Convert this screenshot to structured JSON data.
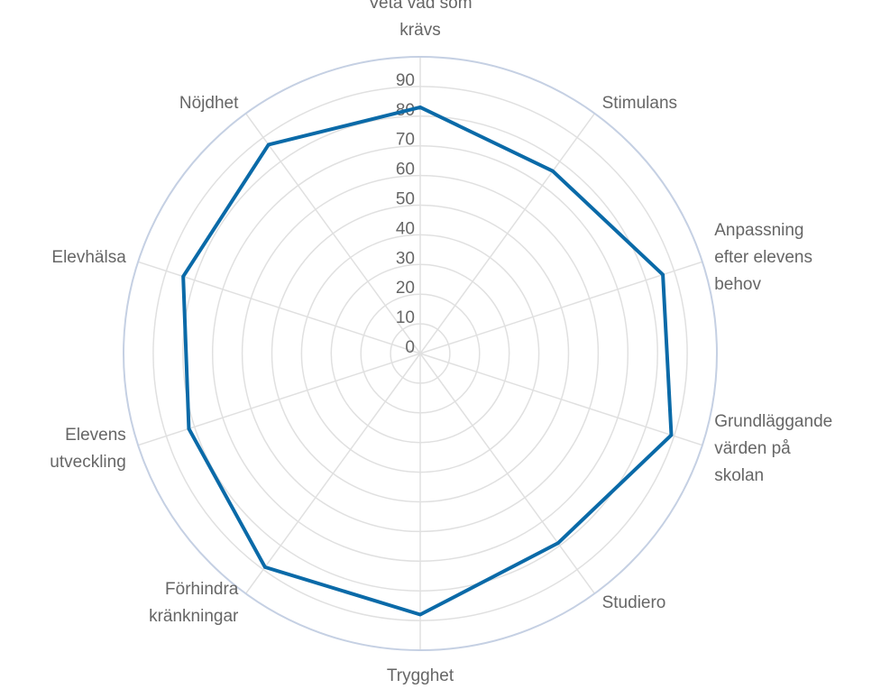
{
  "chart_data": {
    "type": "radar",
    "categories": [
      "Veta vad som krävs",
      "Stimulans",
      "Anpassning efter elevens behov",
      "Grundläggande värden på skolan",
      "Studiero",
      "Trygghet",
      "Förhindra kränkningar",
      "Elevens utveckling",
      "Elevhälsa",
      "Nöjdhet"
    ],
    "values": [
      83,
      76,
      86,
      89,
      79,
      88,
      89,
      82,
      84,
      87
    ],
    "color": "#0a6aa8",
    "ylim": [
      0,
      100
    ],
    "yticks": [
      0,
      10,
      20,
      30,
      40,
      50,
      60,
      70,
      80,
      90
    ],
    "grid": true
  }
}
